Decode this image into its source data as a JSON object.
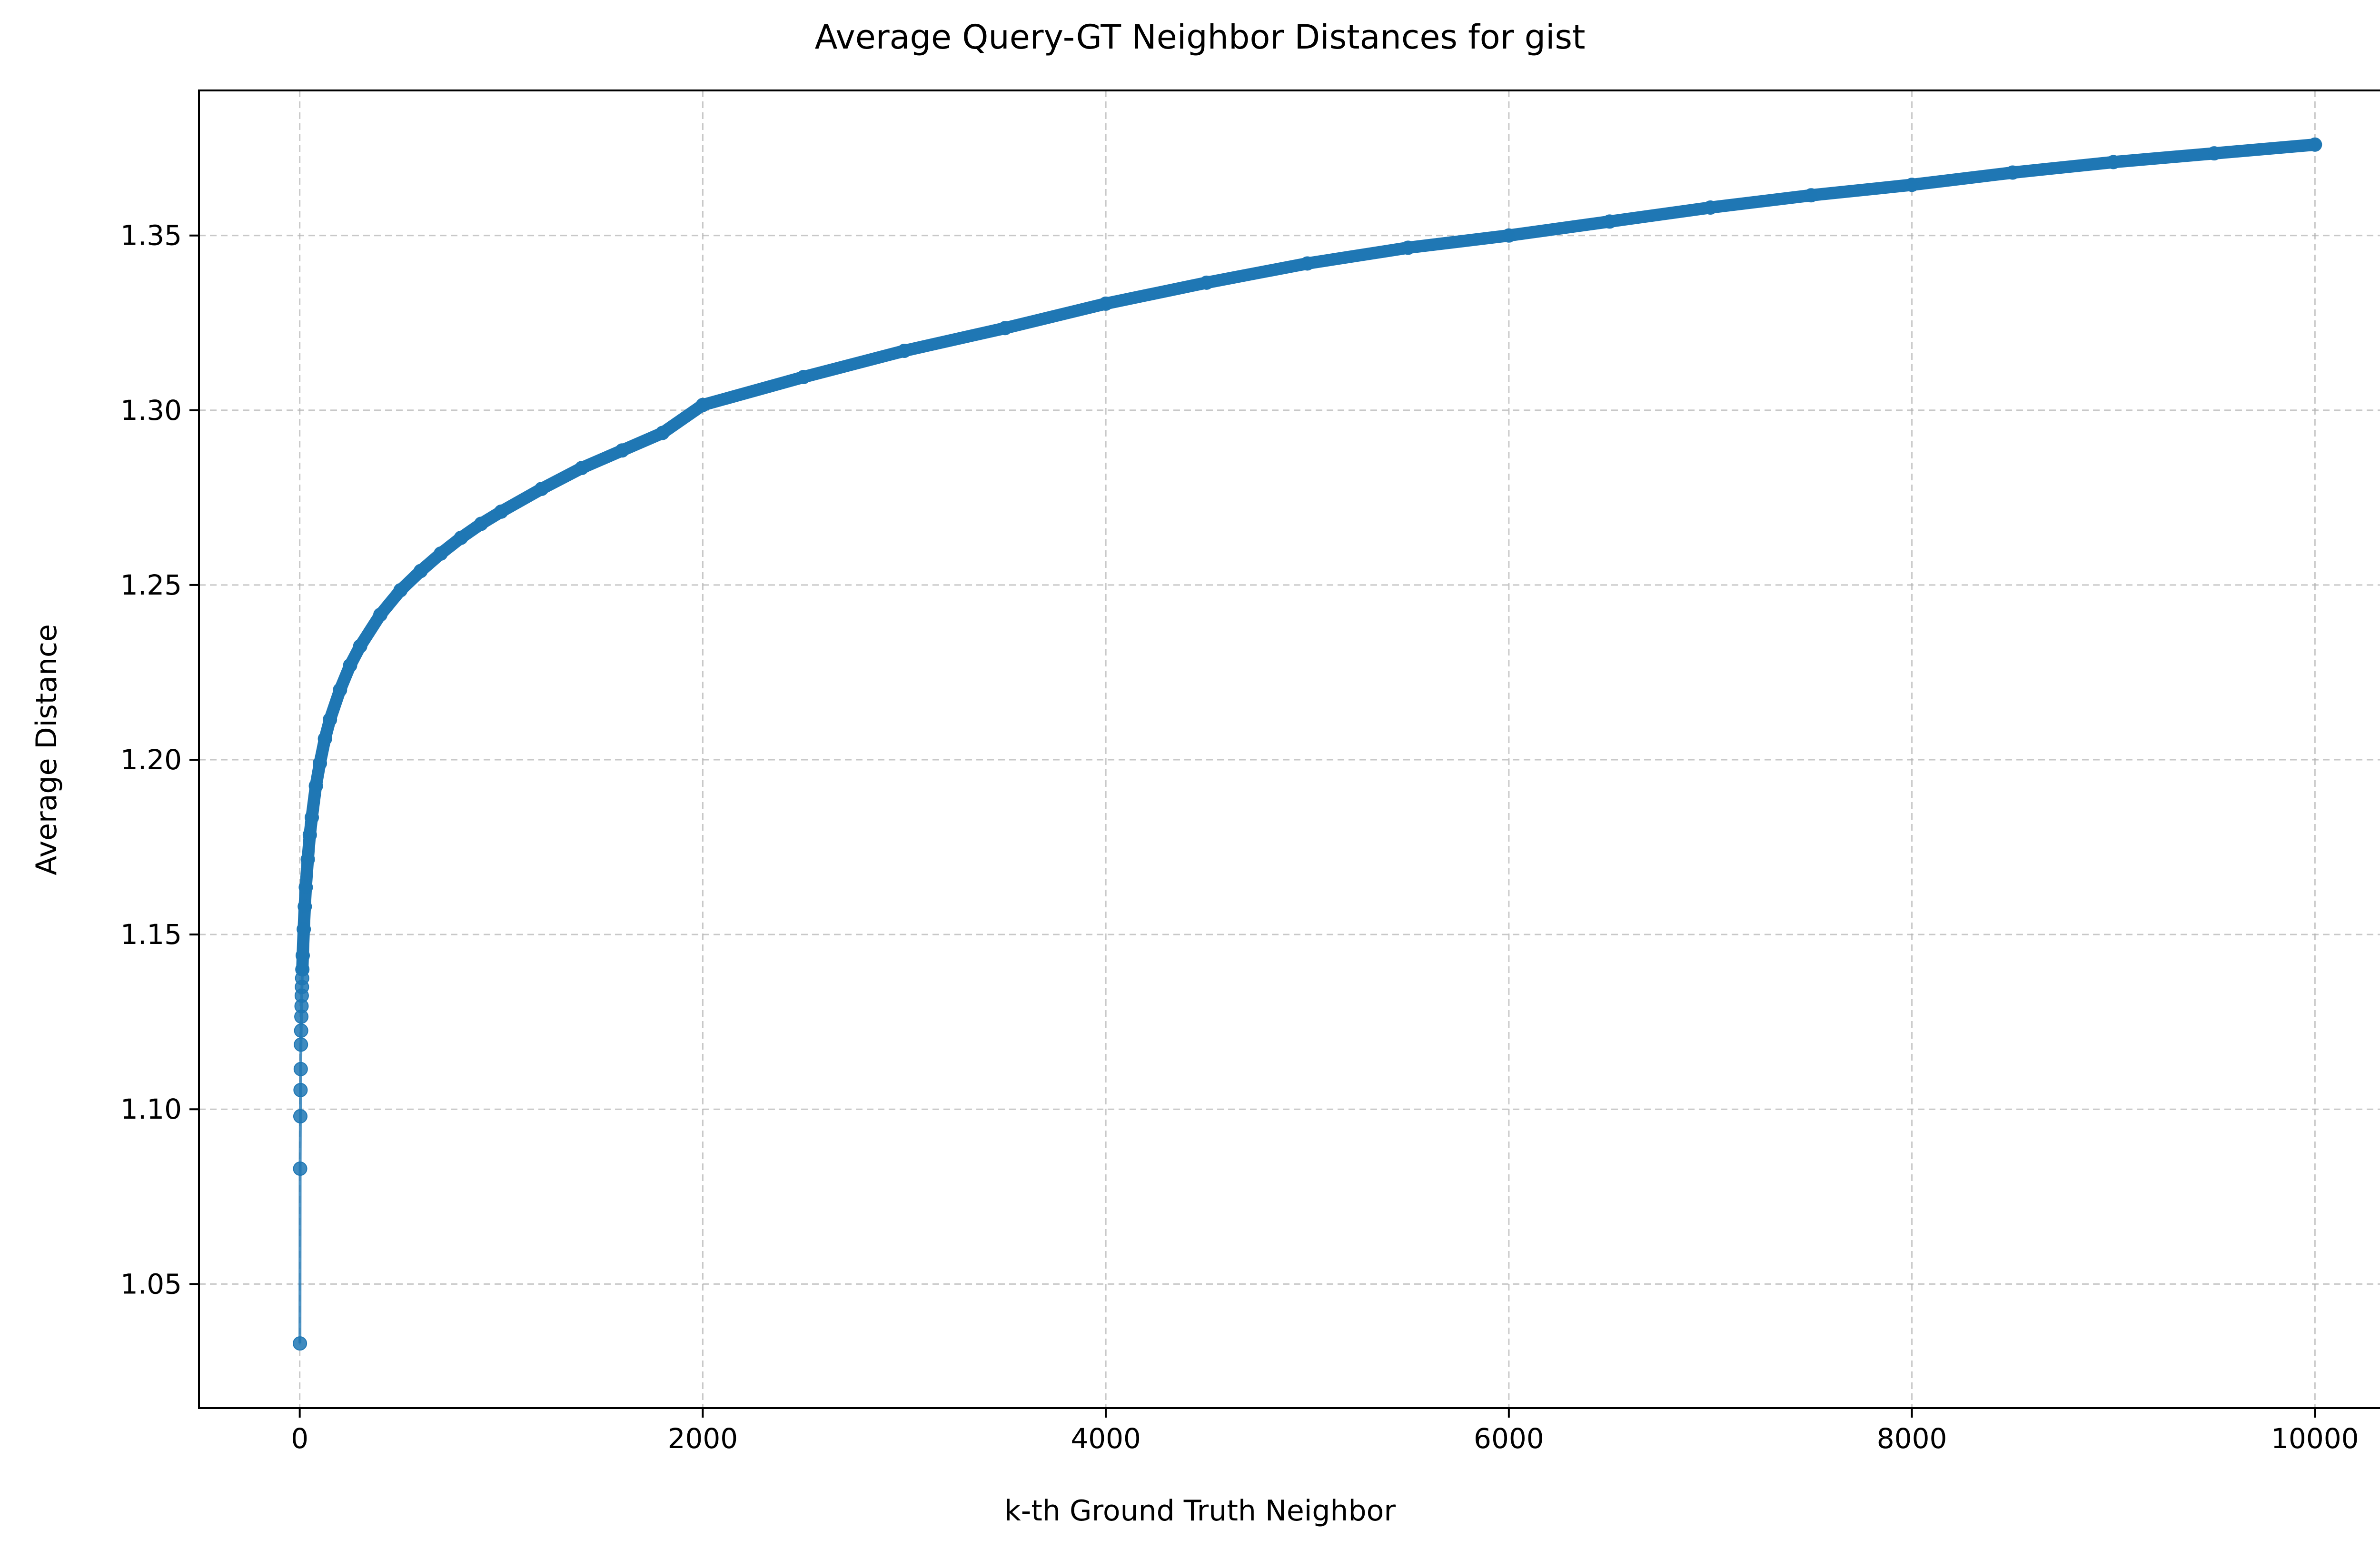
{
  "chart_data": {
    "type": "line",
    "title": "Average Query-GT Neighbor Distances for gist",
    "xlabel": "k-th Ground Truth Neighbor",
    "ylabel": "Average Distance",
    "xlim": [
      -500,
      10500
    ],
    "ylim": [
      1.0145,
      1.3915
    ],
    "xticks": [
      0,
      2000,
      4000,
      6000,
      8000,
      10000
    ],
    "xtick_labels": [
      "0",
      "2000",
      "4000",
      "6000",
      "8000",
      "10000"
    ],
    "yticks": [
      1.05,
      1.1,
      1.15,
      1.2,
      1.25,
      1.3,
      1.35
    ],
    "ytick_labels": [
      "1.05",
      "1.10",
      "1.15",
      "1.20",
      "1.25",
      "1.30",
      "1.35"
    ],
    "grid": true,
    "grid_style": "dashed",
    "line_color": "#1f77b4",
    "series": [
      {
        "k_start": 1,
        "k_end": 10000,
        "markers": "circle",
        "points": [
          [
            1,
            1.033
          ],
          [
            2,
            1.083
          ],
          [
            3,
            1.098
          ],
          [
            4,
            1.1055
          ],
          [
            5,
            1.1115
          ],
          [
            6,
            1.1185
          ],
          [
            7,
            1.1225
          ],
          [
            8,
            1.1265
          ],
          [
            9,
            1.1295
          ],
          [
            10,
            1.1325
          ],
          [
            11,
            1.135
          ],
          [
            12,
            1.1375
          ],
          [
            13,
            1.14
          ],
          [
            15,
            1.144
          ],
          [
            20,
            1.1515
          ],
          [
            25,
            1.158
          ],
          [
            30,
            1.1635
          ],
          [
            40,
            1.1715
          ],
          [
            50,
            1.1785
          ],
          [
            60,
            1.1835
          ],
          [
            80,
            1.1925
          ],
          [
            100,
            1.199
          ],
          [
            125,
            1.206
          ],
          [
            150,
            1.2115
          ],
          [
            200,
            1.22
          ],
          [
            250,
            1.227
          ],
          [
            300,
            1.2325
          ],
          [
            400,
            1.2415
          ],
          [
            500,
            1.2485
          ],
          [
            600,
            1.254
          ],
          [
            700,
            1.259
          ],
          [
            800,
            1.2635
          ],
          [
            900,
            1.2675
          ],
          [
            1000,
            1.271
          ],
          [
            1200,
            1.2775
          ],
          [
            1400,
            1.2835
          ],
          [
            1600,
            1.2885
          ],
          [
            1800,
            1.2935
          ],
          [
            2000,
            1.3015
          ],
          [
            2500,
            1.3095
          ],
          [
            3000,
            1.317
          ],
          [
            3500,
            1.3235
          ],
          [
            4000,
            1.3305
          ],
          [
            4500,
            1.3365
          ],
          [
            5000,
            1.342
          ],
          [
            5500,
            1.3465
          ],
          [
            6000,
            1.35
          ],
          [
            6500,
            1.354
          ],
          [
            7000,
            1.358
          ],
          [
            7500,
            1.3615
          ],
          [
            8000,
            1.3645
          ],
          [
            8500,
            1.368
          ],
          [
            9000,
            1.371
          ],
          [
            9500,
            1.3735
          ],
          [
            10000,
            1.376
          ]
        ]
      }
    ]
  }
}
